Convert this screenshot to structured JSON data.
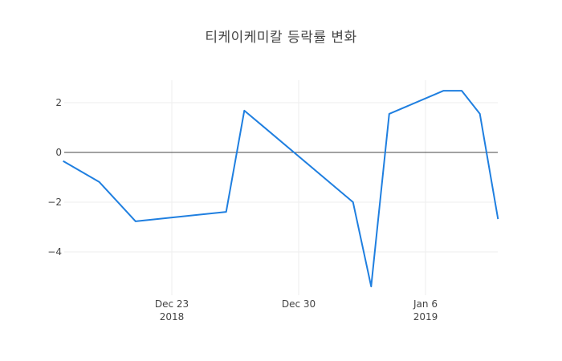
{
  "title": "티케이케미칼 등락률 변화",
  "colors": {
    "line": "#1f7fe0",
    "grid": "#eeeeee",
    "zeroline": "#444444",
    "text": "#444444"
  },
  "chart_data": {
    "type": "line",
    "title": "티케이케미칼 등락률 변화",
    "xlabel": "",
    "ylabel": "",
    "x": [
      "2018-12-17",
      "2018-12-19",
      "2018-12-21",
      "2018-12-26",
      "2018-12-27",
      "2018-12-28",
      "2019-01-02",
      "2019-01-03",
      "2019-01-04",
      "2019-01-07",
      "2019-01-08",
      "2019-01-09",
      "2019-01-10"
    ],
    "series": [
      {
        "name": "등락률",
        "values": [
          -0.35,
          -1.19,
          -2.77,
          -2.39,
          1.68,
          1.07,
          -2.0,
          -5.39,
          1.55,
          2.48,
          2.48,
          1.55,
          -2.68
        ]
      }
    ],
    "ylim": [
      -5.6,
      3.0
    ],
    "xlim": [
      "2018-12-17",
      "2019-01-10"
    ],
    "y_ticks": [
      2,
      0,
      -2,
      -4
    ],
    "y_tick_labels": [
      "2",
      "0",
      "−2",
      "−4"
    ],
    "x_ticks": [
      "2018-12-23",
      "2018-12-30",
      "2019-01-06"
    ],
    "x_tick_labels": [
      {
        "line1": "Dec 23",
        "line2": "2018"
      },
      {
        "line1": "Dec 30",
        "line2": ""
      },
      {
        "line1": "Jan 6",
        "line2": "2019"
      }
    ],
    "grid": true,
    "zeroline": true,
    "legend": "none"
  }
}
